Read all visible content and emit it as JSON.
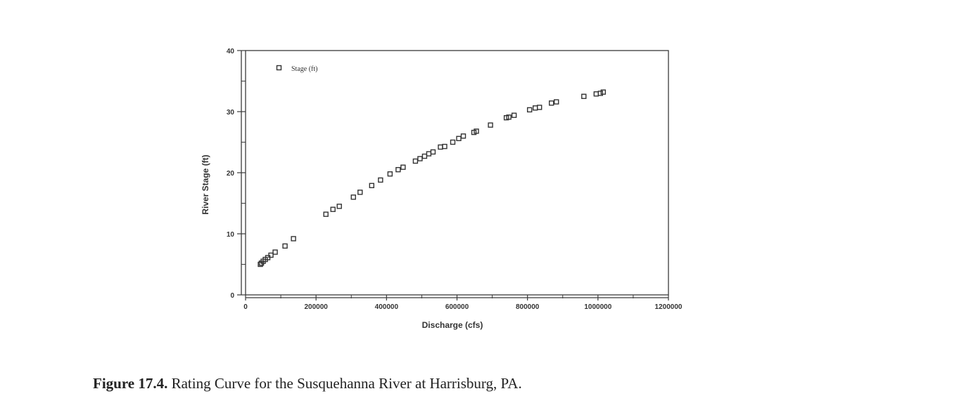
{
  "chart_data": {
    "type": "scatter",
    "title": "",
    "xlabel": "Discharge (cfs)",
    "ylabel": "River Stage (ft)",
    "xlim": [
      0,
      1200000
    ],
    "ylim": [
      0,
      40
    ],
    "x_ticks": [
      0,
      200000,
      400000,
      600000,
      800000,
      1000000,
      1200000
    ],
    "x_tick_labels": [
      "0",
      "200000",
      "400000",
      "600000",
      "800000",
      "1000000",
      "1200000"
    ],
    "y_ticks": [
      0,
      10,
      20,
      30,
      40
    ],
    "y_tick_labels": [
      "0",
      "10",
      "20",
      "30",
      "40"
    ],
    "grid": false,
    "legend": {
      "position": "top-left",
      "entries": [
        "Stage (ft)"
      ]
    },
    "series": [
      {
        "name": "Stage (ft)",
        "marker": "square-open",
        "points": [
          [
            42000,
            5.0
          ],
          [
            45000,
            5.2
          ],
          [
            50000,
            5.5
          ],
          [
            56000,
            5.8
          ],
          [
            63000,
            6.1
          ],
          [
            72000,
            6.5
          ],
          [
            84000,
            7.0
          ],
          [
            112000,
            8.0
          ],
          [
            136000,
            9.2
          ],
          [
            228000,
            13.2
          ],
          [
            248000,
            14.0
          ],
          [
            266000,
            14.5
          ],
          [
            306000,
            16.0
          ],
          [
            325000,
            16.8
          ],
          [
            358000,
            17.9
          ],
          [
            383000,
            18.8
          ],
          [
            410000,
            19.8
          ],
          [
            433000,
            20.5
          ],
          [
            447000,
            20.9
          ],
          [
            482000,
            21.9
          ],
          [
            495000,
            22.3
          ],
          [
            508000,
            22.7
          ],
          [
            520000,
            23.1
          ],
          [
            532000,
            23.4
          ],
          [
            553000,
            24.2
          ],
          [
            565000,
            24.3
          ],
          [
            588000,
            25.0
          ],
          [
            605000,
            25.6
          ],
          [
            618000,
            26.0
          ],
          [
            648000,
            26.6
          ],
          [
            655000,
            26.8
          ],
          [
            695000,
            27.8
          ],
          [
            740000,
            29.0
          ],
          [
            747000,
            29.1
          ],
          [
            762000,
            29.4
          ],
          [
            806000,
            30.3
          ],
          [
            822000,
            30.6
          ],
          [
            834000,
            30.7
          ],
          [
            868000,
            31.4
          ],
          [
            882000,
            31.6
          ],
          [
            960000,
            32.5
          ],
          [
            995000,
            32.9
          ],
          [
            1007000,
            33.0
          ],
          [
            1015000,
            33.2
          ]
        ]
      }
    ]
  },
  "caption": {
    "label": "Figure 17.4.",
    "text": "Rating Curve for the Susquehanna River at Harrisburg, PA."
  }
}
